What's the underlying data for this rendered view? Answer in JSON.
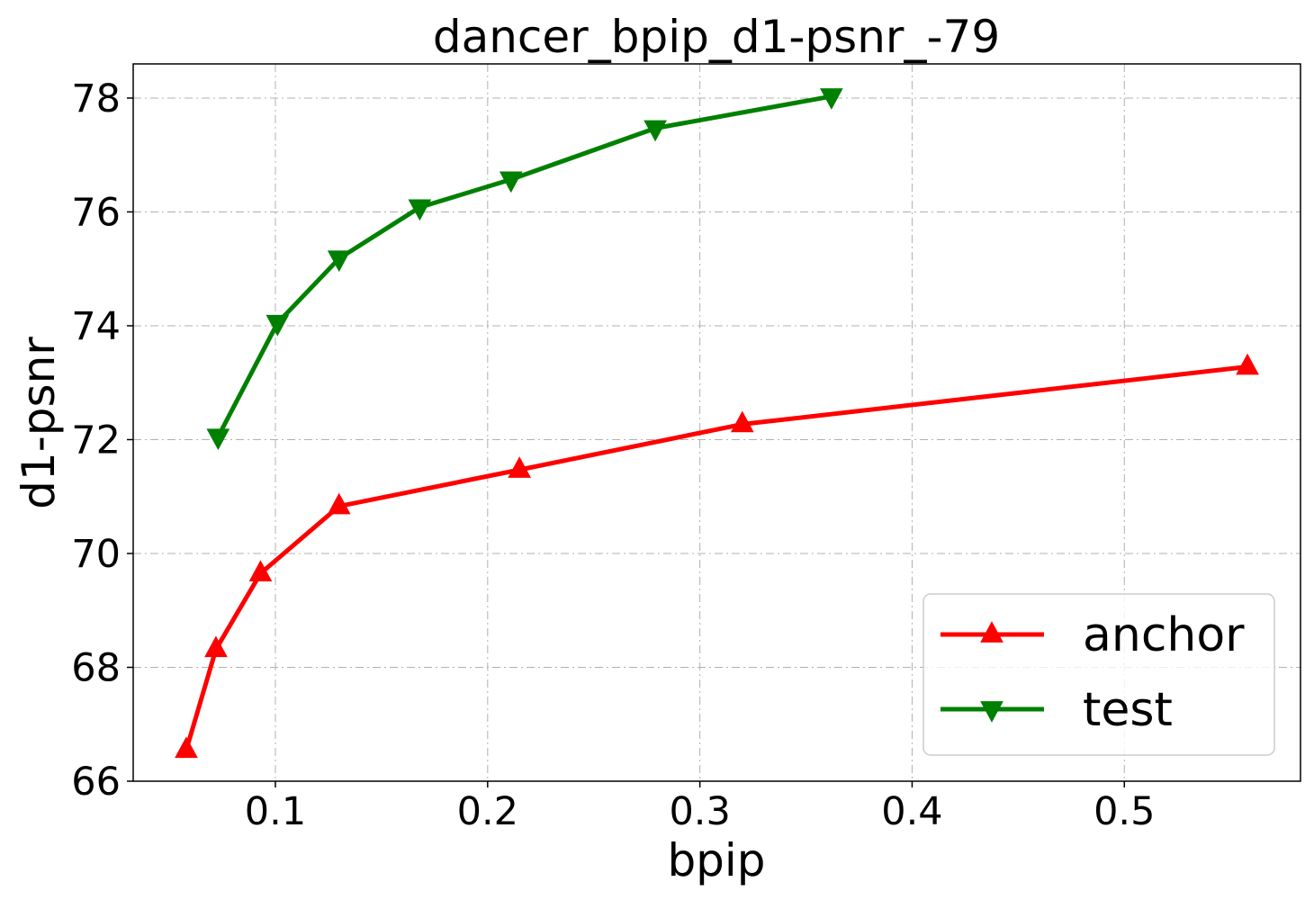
{
  "chart_data": {
    "type": "line",
    "title": "dancer_bpip_d1-psnr_-79",
    "xlabel": "bpip",
    "ylabel": "d1-psnr",
    "xlim": [
      0.033,
      0.583
    ],
    "ylim": [
      66.0,
      78.6
    ],
    "xticks": [
      0.1,
      0.2,
      0.3,
      0.4,
      0.5
    ],
    "xtick_labels": [
      "0.1",
      "0.2",
      "0.3",
      "0.4",
      "0.5"
    ],
    "yticks": [
      66,
      68,
      70,
      72,
      74,
      76,
      78
    ],
    "ytick_labels": [
      "66",
      "68",
      "70",
      "72",
      "74",
      "76",
      "78"
    ],
    "grid": true,
    "legend_position": "bottom-right",
    "series": [
      {
        "name": "anchor",
        "color": "#ff0000",
        "marker": "triangle-up",
        "x": [
          0.058,
          0.072,
          0.093,
          0.13,
          0.215,
          0.32,
          0.558
        ],
        "y": [
          66.55,
          68.32,
          69.65,
          70.83,
          71.47,
          72.27,
          73.28
        ]
      },
      {
        "name": "test",
        "color": "#008000",
        "marker": "triangle-down",
        "x": [
          0.073,
          0.101,
          0.13,
          0.168,
          0.211,
          0.279,
          0.362
        ],
        "y": [
          72.05,
          74.05,
          75.18,
          76.08,
          76.57,
          77.47,
          78.03
        ]
      }
    ]
  }
}
